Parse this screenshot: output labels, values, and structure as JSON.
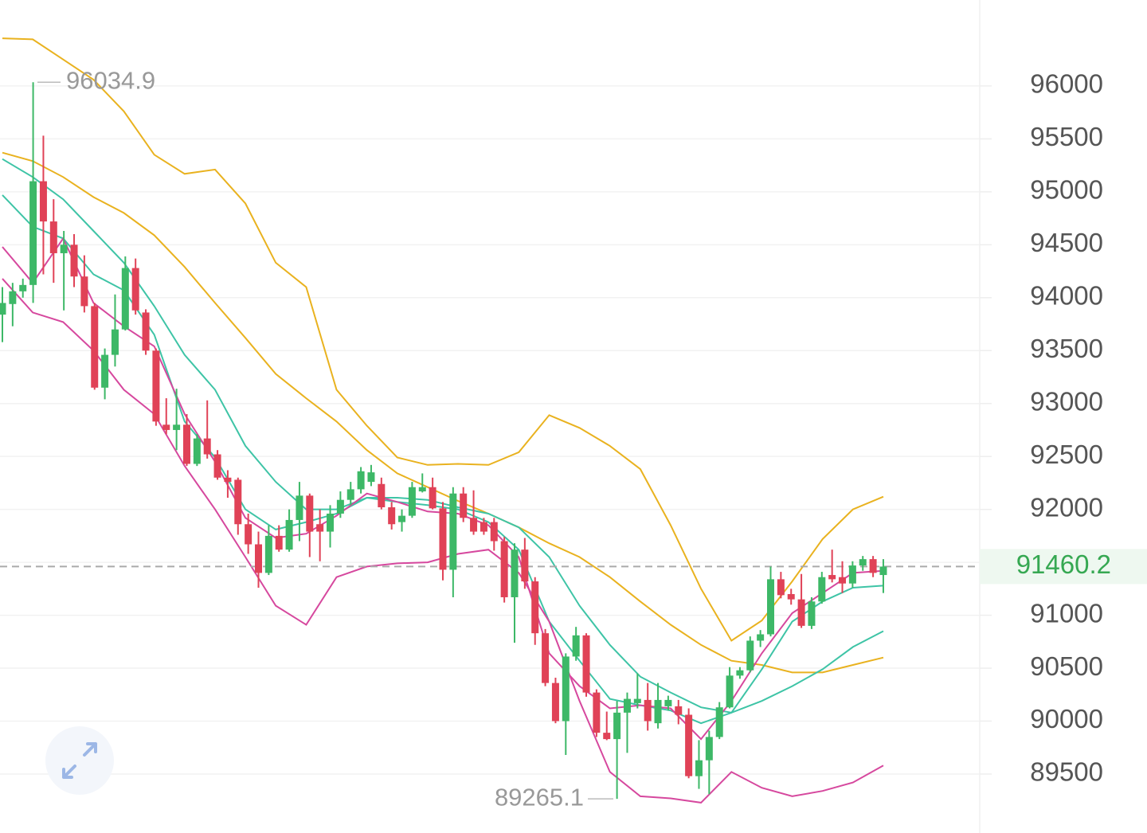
{
  "chart_data": {
    "type": "candlestick",
    "ylim": [
      88943,
      96812
    ],
    "yticks": [
      89500,
      90000,
      90500,
      91000,
      91500,
      92000,
      92500,
      93000,
      93500,
      94000,
      94500,
      95000,
      95500,
      96000
    ],
    "grid": true,
    "up_color": "#3db867",
    "down_color": "#e04257",
    "ohlc": [
      [
        93840,
        94100,
        93580,
        93950
      ],
      [
        93940,
        94140,
        93730,
        94060
      ],
      [
        94060,
        94180,
        94000,
        94120
      ],
      [
        94120,
        96034.9,
        93950,
        95100
      ],
      [
        95100,
        95530,
        94220,
        94720
      ],
      [
        94720,
        94930,
        94140,
        94420
      ],
      [
        94420,
        94630,
        93880,
        94500
      ],
      [
        94500,
        94600,
        94100,
        94200
      ],
      [
        94200,
        94400,
        93860,
        93920
      ],
      [
        93920,
        93950,
        93130,
        93150
      ],
      [
        93150,
        93520,
        93040,
        93460
      ],
      [
        93460,
        94030,
        93350,
        93700
      ],
      [
        93700,
        94390,
        93690,
        94280
      ],
      [
        94280,
        94370,
        93840,
        93880
      ],
      [
        93860,
        93890,
        93460,
        93500
      ],
      [
        93500,
        93520,
        92790,
        92830
      ],
      [
        92800,
        93050,
        92710,
        92750
      ],
      [
        92750,
        93140,
        92560,
        92800
      ],
      [
        92800,
        92900,
        92410,
        92430
      ],
      [
        92430,
        92710,
        92410,
        92670
      ],
      [
        92670,
        93030,
        92480,
        92520
      ],
      [
        92520,
        92560,
        92280,
        92300
      ],
      [
        92300,
        92370,
        92110,
        92260
      ],
      [
        92280,
        92300,
        91760,
        91860
      ],
      [
        91860,
        91960,
        91580,
        91670
      ],
      [
        91670,
        91790,
        91260,
        91400
      ],
      [
        91400,
        91850,
        91380,
        91750
      ],
      [
        91750,
        91850,
        91600,
        91620
      ],
      [
        91620,
        92000,
        91600,
        91900
      ],
      [
        91900,
        92260,
        91700,
        92130
      ],
      [
        92130,
        92150,
        91550,
        91790
      ],
      [
        91860,
        92000,
        91510,
        91790
      ],
      [
        91790,
        92040,
        91640,
        91960
      ],
      [
        91960,
        92170,
        91920,
        92090
      ],
      [
        92090,
        92260,
        92040,
        92190
      ],
      [
        92190,
        92400,
        92150,
        92360
      ],
      [
        92260,
        92420,
        92220,
        92350
      ],
      [
        92240,
        92300,
        92000,
        92020
      ],
      [
        92020,
        92070,
        91810,
        91860
      ],
      [
        91880,
        92000,
        91790,
        91940
      ],
      [
        91940,
        92260,
        91920,
        92210
      ],
      [
        92170,
        92340,
        92160,
        92210
      ],
      [
        92210,
        92300,
        92000,
        92010
      ],
      [
        92010,
        92070,
        91330,
        91430
      ],
      [
        91430,
        92210,
        91170,
        92150
      ],
      [
        92150,
        92210,
        91880,
        91920
      ],
      [
        91920,
        92180,
        91760,
        91790
      ],
      [
        91880,
        91920,
        91760,
        91790
      ],
      [
        91880,
        91920,
        91610,
        91700
      ],
      [
        91700,
        91740,
        91120,
        91170
      ],
      [
        91170,
        91680,
        90740,
        91620
      ],
      [
        91620,
        91730,
        91250,
        91320
      ],
      [
        91320,
        91360,
        90720,
        90830
      ],
      [
        90830,
        90870,
        90330,
        90360
      ],
      [
        90360,
        90410,
        89980,
        90000
      ],
      [
        90000,
        90640,
        89680,
        90610
      ],
      [
        90610,
        90890,
        90570,
        90810
      ],
      [
        90810,
        90830,
        90230,
        90270
      ],
      [
        90270,
        90300,
        89850,
        89890
      ],
      [
        89890,
        90090,
        89820,
        89830
      ],
      [
        89830,
        90190,
        89265.1,
        90080
      ],
      [
        90080,
        90270,
        89700,
        90210
      ],
      [
        90170,
        90450,
        90120,
        90210
      ],
      [
        90200,
        90360,
        89910,
        90000
      ],
      [
        89980,
        90360,
        89930,
        90200
      ],
      [
        90140,
        90240,
        90100,
        90200
      ],
      [
        90140,
        90200,
        89970,
        90060
      ],
      [
        90060,
        90120,
        89460,
        89480
      ],
      [
        89480,
        89820,
        89360,
        89630
      ],
      [
        89630,
        89910,
        89310,
        89850
      ],
      [
        89850,
        90180,
        89830,
        90130
      ],
      [
        90130,
        90510,
        90120,
        90430
      ],
      [
        90430,
        90510,
        90400,
        90480
      ],
      [
        90480,
        90800,
        90460,
        90760
      ],
      [
        90760,
        90860,
        90700,
        90820
      ],
      [
        90820,
        91460,
        90800,
        91340
      ],
      [
        91340,
        91410,
        91160,
        91190
      ],
      [
        91200,
        91250,
        91100,
        91150
      ],
      [
        91150,
        91390,
        90880,
        90900
      ],
      [
        90900,
        91170,
        90870,
        91130
      ],
      [
        91130,
        91410,
        91110,
        91360
      ],
      [
        91380,
        91620,
        91310,
        91340
      ],
      [
        91360,
        91510,
        91210,
        91300
      ],
      [
        91300,
        91510,
        91260,
        91470
      ],
      [
        91470,
        91560,
        91420,
        91530
      ],
      [
        91530,
        91560,
        91360,
        91400
      ],
      [
        91380,
        91530,
        91210,
        91460
      ]
    ],
    "lines": [
      {
        "color": "#e9b21f",
        "values": [
          96450,
          96440,
          96250,
          96060,
          95760,
          95350,
          95170,
          95210,
          94890,
          94330,
          94100,
          93130,
          92790,
          92490,
          92420,
          92430,
          92420,
          92540,
          92890,
          92770,
          92600,
          92380,
          91850,
          91250,
          90760,
          90950,
          91320,
          91720,
          92000,
          92120
        ]
      },
      {
        "color": "#e9b21f",
        "values": [
          95370,
          95290,
          95140,
          94950,
          94800,
          94590,
          94290,
          93950,
          93620,
          93280,
          93050,
          92830,
          92560,
          92340,
          92210,
          92080,
          91960,
          91830,
          91680,
          91550,
          91360,
          91130,
          90910,
          90720,
          90570,
          90530,
          90460,
          90460,
          90530,
          90600
        ]
      },
      {
        "color": "#3ec4a6",
        "values": [
          95310,
          95140,
          94930,
          94630,
          94330,
          93920,
          93460,
          93130,
          92600,
          92260,
          92000,
          92000,
          92110,
          92110,
          92090,
          92020,
          91960,
          91830,
          91550,
          91090,
          90720,
          90420,
          90270,
          90130,
          90080,
          90190,
          90330,
          90490,
          90700,
          90850
        ]
      },
      {
        "color": "#3ec4a6",
        "values": [
          94970,
          94670,
          94560,
          94220,
          94070,
          93650,
          92830,
          92490,
          92000,
          91810,
          91880,
          91960,
          92110,
          92070,
          92040,
          92000,
          91880,
          91620,
          90940,
          90570,
          90210,
          90150,
          90100,
          89980,
          90080,
          90490,
          90940,
          91130,
          91260,
          91280
        ]
      },
      {
        "color": "#d6489e",
        "values": [
          94480,
          94140,
          94560,
          93950,
          93730,
          93540,
          92900,
          92450,
          91920,
          91730,
          91770,
          91940,
          92150,
          92070,
          91980,
          91960,
          91850,
          91550,
          90640,
          90330,
          90120,
          90150,
          90120,
          89830,
          90190,
          90640,
          91020,
          91210,
          91400,
          91420
        ]
      },
      {
        "color": "#d6489e",
        "values": [
          94180,
          93860,
          93770,
          93500,
          93130,
          92900,
          92410,
          92000,
          91550,
          91090,
          90910,
          91360,
          91460,
          91490,
          91500,
          91580,
          91620,
          91400,
          90940,
          90190,
          89520,
          89290,
          89270,
          89230,
          89520,
          89370,
          89290,
          89340,
          89420,
          89580
        ]
      }
    ],
    "max_label": 96034.9,
    "min_label": 89265.1,
    "last_price": 91460.2
  }
}
